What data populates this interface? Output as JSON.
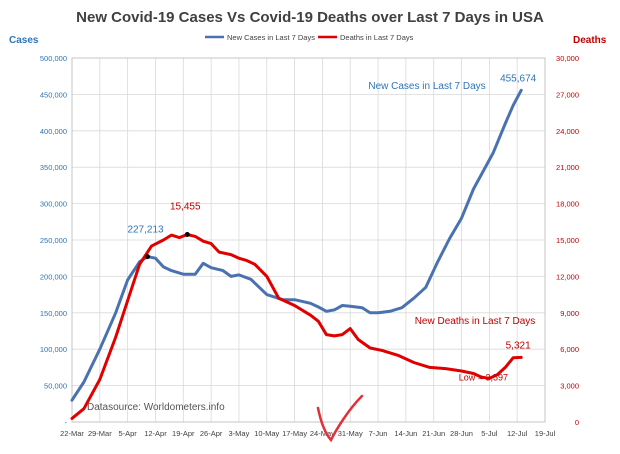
{
  "chart_data": {
    "type": "line",
    "title": "New Covid-19 Cases Vs Covid-19 Deaths over Last 7 Days in USA",
    "ylabel_left": "Cases",
    "ylabel_right": "Deaths",
    "legend_placement": "top-center",
    "grid": true,
    "xlim": [
      0,
      119
    ],
    "ylim_left": [
      0,
      500000
    ],
    "ylim_right": [
      0,
      30000
    ],
    "x_ticks": [
      {
        "x": 0,
        "label": "22-Mar"
      },
      {
        "x": 7,
        "label": "29-Mar"
      },
      {
        "x": 14,
        "label": "5-Apr"
      },
      {
        "x": 21,
        "label": "12-Apr"
      },
      {
        "x": 28,
        "label": "19-Apr"
      },
      {
        "x": 35,
        "label": "26-Apr"
      },
      {
        "x": 42,
        "label": "3-May"
      },
      {
        "x": 49,
        "label": "10-May"
      },
      {
        "x": 56,
        "label": "17-May"
      },
      {
        "x": 63,
        "label": "24-May"
      },
      {
        "x": 70,
        "label": "31-May"
      },
      {
        "x": 77,
        "label": "7-Jun"
      },
      {
        "x": 84,
        "label": "14-Jun"
      },
      {
        "x": 91,
        "label": "21-Jun"
      },
      {
        "x": 98,
        "label": "28-Jun"
      },
      {
        "x": 105,
        "label": "5-Jul"
      },
      {
        "x": 112,
        "label": "12-Jul"
      },
      {
        "x": 119,
        "label": "19-Jul"
      }
    ],
    "y_left_ticks": [
      {
        "value": 0,
        "label": "-"
      },
      {
        "value": 50000,
        "label": "50,000"
      },
      {
        "value": 100000,
        "label": "100,000"
      },
      {
        "value": 150000,
        "label": "150,000"
      },
      {
        "value": 200000,
        "label": "200,000"
      },
      {
        "value": 250000,
        "label": "250,000"
      },
      {
        "value": 300000,
        "label": "300,000"
      },
      {
        "value": 350000,
        "label": "350,000"
      },
      {
        "value": 400000,
        "label": "400,000"
      },
      {
        "value": 450000,
        "label": "450,000"
      },
      {
        "value": 500000,
        "label": "500,000"
      }
    ],
    "y_right_ticks": [
      {
        "value": 0,
        "label": "0"
      },
      {
        "value": 3000,
        "label": "3,000"
      },
      {
        "value": 6000,
        "label": "6,000"
      },
      {
        "value": 9000,
        "label": "9,000"
      },
      {
        "value": 12000,
        "label": "12,000"
      },
      {
        "value": 15000,
        "label": "15,000"
      },
      {
        "value": 18000,
        "label": "18,000"
      },
      {
        "value": 21000,
        "label": "21,000"
      },
      {
        "value": 24000,
        "label": "24,000"
      },
      {
        "value": 27000,
        "label": "27,000"
      },
      {
        "value": 30000,
        "label": "30,000"
      }
    ],
    "series": [
      {
        "name": "New Cases in Last 7 Days",
        "axis": "left",
        "color": "#4a72b0",
        "points": [
          [
            0,
            30000
          ],
          [
            3,
            55000
          ],
          [
            7,
            100000
          ],
          [
            11,
            150000
          ],
          [
            14,
            195000
          ],
          [
            17,
            220000
          ],
          [
            19,
            227213
          ],
          [
            21,
            225000
          ],
          [
            23,
            213000
          ],
          [
            25,
            208000
          ],
          [
            28,
            203000
          ],
          [
            31,
            203000
          ],
          [
            33,
            218000
          ],
          [
            35,
            212000
          ],
          [
            38,
            208000
          ],
          [
            40,
            200000
          ],
          [
            42,
            202000
          ],
          [
            45,
            196000
          ],
          [
            49,
            175000
          ],
          [
            53,
            168000
          ],
          [
            56,
            168000
          ],
          [
            60,
            163000
          ],
          [
            62,
            158000
          ],
          [
            64,
            152000
          ],
          [
            66,
            154000
          ],
          [
            68,
            160000
          ],
          [
            70,
            159000
          ],
          [
            73,
            157000
          ],
          [
            75,
            150000
          ],
          [
            77,
            150000
          ],
          [
            80,
            152000
          ],
          [
            83,
            157000
          ],
          [
            86,
            170000
          ],
          [
            89,
            185000
          ],
          [
            92,
            220000
          ],
          [
            95,
            252000
          ],
          [
            98,
            280000
          ],
          [
            101,
            320000
          ],
          [
            103,
            340000
          ],
          [
            106,
            370000
          ],
          [
            109,
            410000
          ],
          [
            111,
            435000
          ],
          [
            113,
            455674
          ]
        ]
      },
      {
        "name": "Deaths in Last 7 Days",
        "axis": "right",
        "color": "#e00000",
        "points": [
          [
            0,
            300
          ],
          [
            3,
            1100
          ],
          [
            7,
            3500
          ],
          [
            11,
            7000
          ],
          [
            14,
            10000
          ],
          [
            17,
            13000
          ],
          [
            20,
            14500
          ],
          [
            23,
            15000
          ],
          [
            25,
            15400
          ],
          [
            27,
            15200
          ],
          [
            29,
            15455
          ],
          [
            31,
            15300
          ],
          [
            33,
            14900
          ],
          [
            35,
            14700
          ],
          [
            37,
            14000
          ],
          [
            40,
            13800
          ],
          [
            42,
            13500
          ],
          [
            44,
            13300
          ],
          [
            46,
            13000
          ],
          [
            49,
            12000
          ],
          [
            52,
            10200
          ],
          [
            56,
            9600
          ],
          [
            60,
            8800
          ],
          [
            62,
            8300
          ],
          [
            64,
            7200
          ],
          [
            66,
            7100
          ],
          [
            68,
            7200
          ],
          [
            70,
            7700
          ],
          [
            72,
            6800
          ],
          [
            75,
            6100
          ],
          [
            78,
            5900
          ],
          [
            82,
            5500
          ],
          [
            86,
            4900
          ],
          [
            90,
            4500
          ],
          [
            94,
            4400
          ],
          [
            98,
            4200
          ],
          [
            101,
            4000
          ],
          [
            103,
            3700
          ],
          [
            105,
            3597
          ],
          [
            107,
            3900
          ],
          [
            109,
            4500
          ],
          [
            111,
            5300
          ],
          [
            113,
            5321
          ]
        ]
      }
    ],
    "annotations": [
      {
        "text": "227,213",
        "series": "cases",
        "x": 19,
        "value": 227213
      },
      {
        "text": "15,455",
        "series": "deaths",
        "x": 29,
        "value": 15455
      },
      {
        "text": "New Cases in Last 7 Days",
        "series": "cases"
      },
      {
        "text": "455,674",
        "series": "cases",
        "x": 113,
        "value": 455674
      },
      {
        "text": "New Deaths in Last 7 Days",
        "series": "deaths"
      },
      {
        "text": "Low = 3,597",
        "series": "deaths",
        "x": 105,
        "value": 3597
      },
      {
        "text": "5,321",
        "series": "deaths",
        "x": 113,
        "value": 5321
      }
    ],
    "source_text": "Datasource: Worldometers.info"
  },
  "colors": {
    "cases": "#4a72b0",
    "deaths": "#e00000",
    "checkmark": "#e0303a",
    "grid": "#d9d9d9"
  }
}
